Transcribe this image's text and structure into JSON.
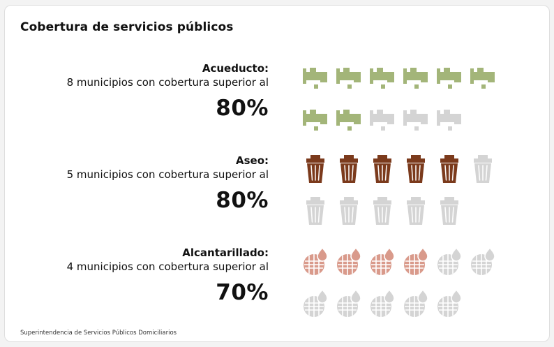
{
  "title": "Cobertura de servicios públicos",
  "source": "Superintendencia de Servicios Públicos Domiciliarios",
  "colors": {
    "empty": "#d4d4d4"
  },
  "chart_data": {
    "type": "pictograph",
    "title": "Cobertura de servicios públicos",
    "rows": [
      {
        "label": "Acueducto:",
        "description": "8 municipios con cobertura superior al",
        "percent": "80%",
        "icon": "faucet-icon",
        "icons_total": 11,
        "icons_filled": 8,
        "color": "#a3b579"
      },
      {
        "label": "Aseo:",
        "description": "5 municipios con cobertura superior al",
        "percent": "80%",
        "icon": "trash-can-icon",
        "icons_total": 11,
        "icons_filled": 5,
        "color": "#7b3a1c"
      },
      {
        "label": "Alcantarillado:",
        "description": "4 municipios con cobertura superior al",
        "percent": "70%",
        "icon": "sewer-drop-icon",
        "icons_total": 11,
        "icons_filled": 4,
        "color": "#d99a8b"
      }
    ]
  }
}
